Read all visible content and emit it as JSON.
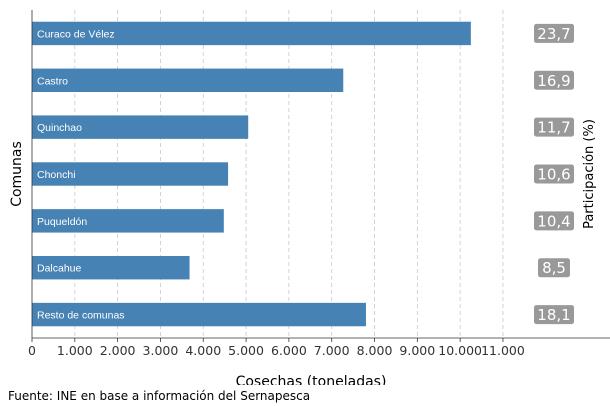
{
  "chart_data": {
    "type": "bar",
    "orientation": "horizontal",
    "categories": [
      "Curaco de Vélez",
      "Castro",
      "Quinchao",
      "Chonchi",
      "Puqueldón",
      "Dalcahue",
      "Resto de comunas"
    ],
    "values": [
      10250,
      7270,
      5050,
      4580,
      4480,
      3680,
      7800
    ],
    "shares": [
      "23,7",
      "16,9",
      "11,7",
      "10,6",
      "10,4",
      "8,5",
      "18,1"
    ],
    "xlabel": "Cosechas (toneladas)",
    "ylabel": "Comunas",
    "right_label": "Participación (%)",
    "xlim": [
      0,
      13500
    ],
    "xticks": [
      0,
      1000,
      2000,
      3000,
      4000,
      5000,
      6000,
      7000,
      8000,
      9000,
      10000,
      11000
    ],
    "xtick_labels": [
      "0",
      "1.000",
      "2.000",
      "3.000",
      "4.000",
      "5.000",
      "6.000",
      "7.000",
      "8.000",
      "9.000",
      "10.000",
      "11.000"
    ],
    "grid": "vertical-dashed",
    "bar_color": "#4682b4",
    "badge_color": "#999999"
  },
  "source": "Fuente: INE en base a información del Sernapesca"
}
